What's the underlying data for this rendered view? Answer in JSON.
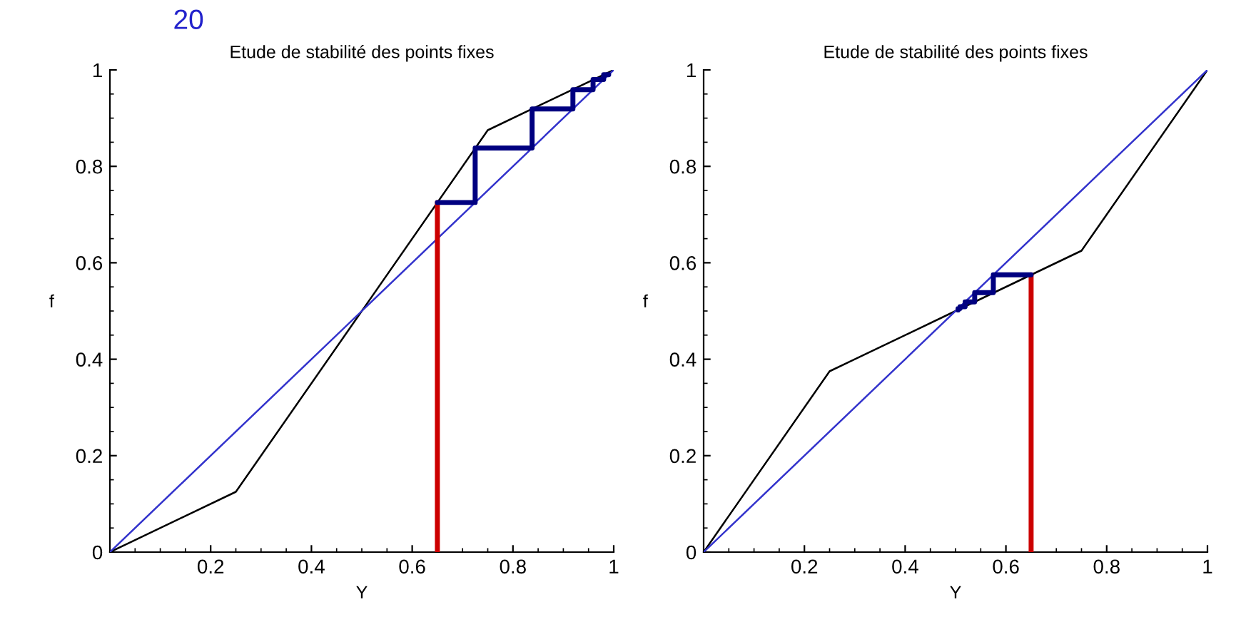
{
  "chart_data": [
    {
      "type": "line",
      "title": "Etude de stabilité des points fixes",
      "xlabel": "Y",
      "ylabel": "f",
      "annotations": [
        "20"
      ],
      "xlim": [
        0,
        1
      ],
      "ylim": [
        0,
        1
      ],
      "xticks": [
        0.2,
        0.4,
        0.6,
        0.8,
        1
      ],
      "yticks": [
        0,
        0.2,
        0.4,
        0.6,
        0.8,
        1
      ],
      "grid": false,
      "legend": false,
      "series": [
        {
          "color": "#000000",
          "x": [
            0,
            0.25,
            0.5,
            0.75,
            1
          ],
          "values": [
            0,
            0.125,
            0.5,
            0.875,
            1
          ]
        },
        {
          "color": "#3333cc",
          "x": [
            0,
            1
          ],
          "values": [
            0,
            1
          ]
        },
        {
          "color": "#cc0000",
          "x": [
            0.65,
            0.65
          ],
          "values": [
            0,
            0.725
          ]
        },
        {
          "color": "#000080",
          "x": [
            0.65,
            0.725,
            0.725,
            0.838,
            0.838,
            0.919,
            0.919,
            0.959,
            0.959,
            0.98,
            0.98,
            0.99
          ],
          "values": [
            0.725,
            0.725,
            0.838,
            0.838,
            0.919,
            0.919,
            0.959,
            0.959,
            0.98,
            0.98,
            0.99,
            0.99
          ]
        }
      ]
    },
    {
      "type": "line",
      "title": "Etude de stabilité des points fixes",
      "xlabel": "Y",
      "ylabel": "f",
      "xlim": [
        0,
        1
      ],
      "ylim": [
        0,
        1
      ],
      "xticks": [
        0.2,
        0.4,
        0.6,
        0.8,
        1
      ],
      "yticks": [
        0,
        0.2,
        0.4,
        0.6,
        0.8,
        1
      ],
      "grid": false,
      "legend": false,
      "series": [
        {
          "color": "#000000",
          "x": [
            0,
            0.25,
            0.5,
            0.75,
            1
          ],
          "values": [
            0,
            0.375,
            0.5,
            0.625,
            1
          ]
        },
        {
          "color": "#3333cc",
          "x": [
            0,
            1
          ],
          "values": [
            0,
            1
          ]
        },
        {
          "color": "#cc0000",
          "x": [
            0.65,
            0.65
          ],
          "values": [
            0,
            0.575
          ]
        },
        {
          "color": "#000080",
          "x": [
            0.65,
            0.575,
            0.575,
            0.538,
            0.538,
            0.519,
            0.519,
            0.509,
            0.509,
            0.505,
            0.505
          ],
          "values": [
            0.575,
            0.575,
            0.538,
            0.538,
            0.519,
            0.519,
            0.509,
            0.509,
            0.505,
            0.505,
            0.502
          ]
        }
      ]
    }
  ]
}
